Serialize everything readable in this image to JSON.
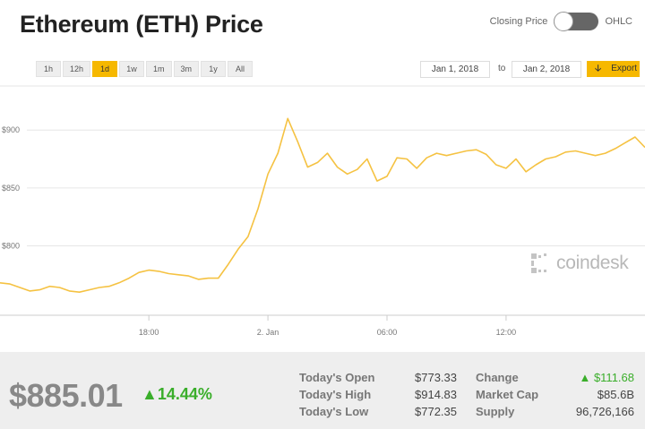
{
  "header": {
    "title": "Ethereum (ETH) Price",
    "toggle_left_label": "Closing Price",
    "toggle_right_label": "OHLC"
  },
  "range_buttons": [
    {
      "label": "1h",
      "active": false
    },
    {
      "label": "12h",
      "active": false
    },
    {
      "label": "1d",
      "active": true
    },
    {
      "label": "1w",
      "active": false
    },
    {
      "label": "1m",
      "active": false
    },
    {
      "label": "3m",
      "active": false
    },
    {
      "label": "1y",
      "active": false
    },
    {
      "label": "All",
      "active": false
    }
  ],
  "date_range": {
    "from": "Jan 1, 2018",
    "to_label": "to",
    "to": "Jan 2, 2018",
    "export_label": "Export",
    "export_icon": "download-icon"
  },
  "watermark": {
    "text": "coindesk",
    "icon": "coindesk-logo-icon"
  },
  "colors": {
    "accent": "#f6b800",
    "line": "#f5c242",
    "positive": "#3aae2a"
  },
  "chart_data": {
    "type": "line",
    "x_tick_labels": [
      "18:00",
      "2. Jan",
      "06:00",
      "12:00"
    ],
    "x_tick_hours": [
      6,
      12,
      18,
      24
    ],
    "x_range_hours": [
      -1.5,
      31
    ],
    "y_tick_labels": [
      "$800",
      "$850",
      "$900"
    ],
    "y_tick_values": [
      800,
      850,
      900
    ],
    "ylim": [
      740,
      935
    ],
    "grid": true,
    "x_hours": [
      -1.5,
      -1,
      -0.5,
      0,
      0.5,
      1,
      1.5,
      2,
      2.5,
      3,
      3.5,
      4,
      4.5,
      5,
      5.5,
      6,
      6.5,
      7,
      7.5,
      8,
      8.5,
      9,
      9.5,
      10,
      10.5,
      11,
      11.5,
      12,
      12.5,
      13,
      13.5,
      14,
      14.5,
      15,
      15.5,
      16,
      16.5,
      17,
      17.5,
      18,
      18.5,
      19,
      19.5,
      20,
      20.5,
      21,
      21.5,
      22,
      22.5,
      23,
      23.5,
      24,
      24.5,
      25,
      25.5,
      26,
      26.5,
      27,
      27.5,
      28,
      28.5,
      29,
      29.5,
      30,
      30.5,
      31
    ],
    "values": [
      768,
      767,
      764,
      761,
      762,
      765,
      764,
      761,
      760,
      762,
      764,
      765,
      768,
      772,
      777,
      779,
      778,
      776,
      775,
      774,
      771,
      772,
      772,
      784,
      797,
      808,
      832,
      862,
      880,
      910,
      890,
      868,
      872,
      880,
      868,
      862,
      866,
      875,
      856,
      860,
      876,
      875,
      867,
      876,
      880,
      878,
      880,
      882,
      883,
      879,
      870,
      867,
      875,
      864,
      870,
      875,
      877,
      881,
      882,
      880,
      878,
      880,
      884,
      889,
      894,
      885
    ]
  },
  "summary": {
    "price": "$885.01",
    "change_pct": "14.44%",
    "today_open_label": "Today's Open",
    "today_open": "$773.33",
    "today_high_label": "Today's High",
    "today_high": "$914.83",
    "today_low_label": "Today's Low",
    "today_low": "$772.35",
    "change_label": "Change",
    "change": "$111.68",
    "market_cap_label": "Market Cap",
    "market_cap": "$85.6B",
    "supply_label": "Supply",
    "supply": "96,726,166"
  }
}
